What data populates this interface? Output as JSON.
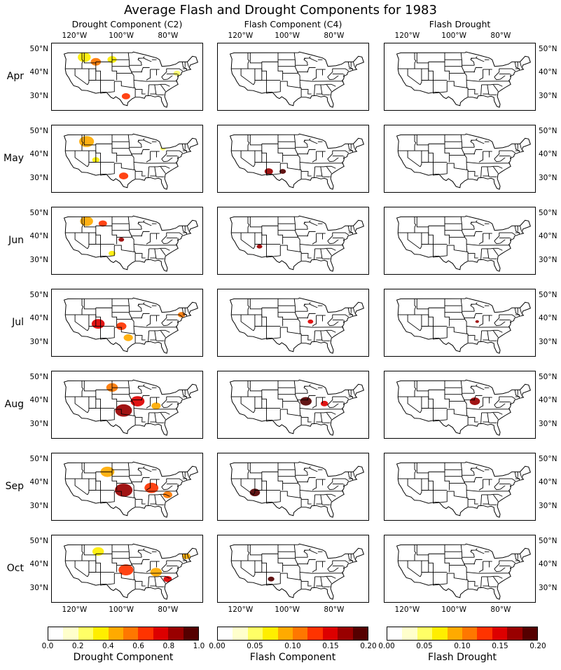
{
  "chart_data": {
    "type": "heatmap",
    "title": "Average Flash and Drought Components for 1983",
    "columns": [
      {
        "title": "Drought Component (C2)",
        "colorbar_label": "Drought Component",
        "colorbar_ticks": [
          "0.0",
          "0.2",
          "0.4",
          "0.6",
          "0.8",
          "1.0"
        ],
        "vmin": 0.0,
        "vmax": 1.0,
        "levels": [
          0.0,
          0.1,
          0.2,
          0.3,
          0.4,
          0.5,
          0.6,
          0.7,
          0.8,
          0.9,
          1.0
        ]
      },
      {
        "title": "Flash Component (C4)",
        "colorbar_label": "Flash Component",
        "colorbar_ticks": [
          "0.00",
          "0.05",
          "0.10",
          "0.15",
          "0.20"
        ],
        "vmin": 0.0,
        "vmax": 0.2,
        "levels": [
          0.0,
          0.02,
          0.04,
          0.06,
          0.08,
          0.1,
          0.12,
          0.14,
          0.16,
          0.18,
          0.2
        ]
      },
      {
        "title": "Flash Drought",
        "colorbar_label": "Flash Drought",
        "colorbar_ticks": [
          "0.00",
          "0.05",
          "0.10",
          "0.15",
          "0.20"
        ],
        "vmin": 0.0,
        "vmax": 0.2,
        "levels": [
          0.0,
          0.02,
          0.04,
          0.06,
          0.08,
          0.1,
          0.12,
          0.14,
          0.16,
          0.18,
          0.2
        ]
      }
    ],
    "rows": [
      "Apr",
      "May",
      "Jun",
      "Jul",
      "Aug",
      "Sep",
      "Oct"
    ],
    "lon_ticks": [
      "120°W",
      "100°W",
      "80°W"
    ],
    "lat_ticks": [
      "50°N",
      "40°N",
      "30°N"
    ],
    "colormap": [
      "#ffffff",
      "#ffffcc",
      "#ffff66",
      "#ffee00",
      "#ffaa00",
      "#ff7700",
      "#ff3300",
      "#dd0000",
      "#990000",
      "#550000",
      "#000000"
    ],
    "extent": {
      "lon": [
        -130,
        -65
      ],
      "lat": [
        24,
        53
      ]
    },
    "regions": [
      {
        "month": "Apr",
        "col": 0,
        "lon": -116,
        "lat": 47,
        "r": 2.8,
        "value": 0.3
      },
      {
        "month": "Apr",
        "col": 0,
        "lon": -111,
        "lat": 45,
        "r": 2.2,
        "value": 0.5
      },
      {
        "month": "Apr",
        "col": 0,
        "lon": -104,
        "lat": 46,
        "r": 2.0,
        "value": 0.3
      },
      {
        "month": "Apr",
        "col": 0,
        "lon": -98,
        "lat": 30,
        "r": 1.8,
        "value": 0.6
      },
      {
        "month": "Apr",
        "col": 0,
        "lon": -76,
        "lat": 40,
        "r": 1.5,
        "value": 0.2
      },
      {
        "month": "May",
        "col": 0,
        "lon": -115,
        "lat": 46,
        "r": 3.2,
        "value": 0.4
      },
      {
        "month": "May",
        "col": 0,
        "lon": -99,
        "lat": 31,
        "r": 2.0,
        "value": 0.6
      },
      {
        "month": "May",
        "col": 0,
        "lon": -111,
        "lat": 38,
        "r": 1.6,
        "value": 0.3
      },
      {
        "month": "May",
        "col": 0,
        "lon": -82,
        "lat": 43,
        "r": 1.2,
        "value": 0.2
      },
      {
        "month": "May",
        "col": 1,
        "lon": -108,
        "lat": 33,
        "r": 1.8,
        "value": 0.16
      },
      {
        "month": "May",
        "col": 1,
        "lon": -102,
        "lat": 33,
        "r": 1.4,
        "value": 0.18
      },
      {
        "month": "Jun",
        "col": 0,
        "lon": -115,
        "lat": 47,
        "r": 2.8,
        "value": 0.4
      },
      {
        "month": "Jun",
        "col": 0,
        "lon": -108,
        "lat": 46,
        "r": 1.8,
        "value": 0.6
      },
      {
        "month": "Jun",
        "col": 0,
        "lon": -104,
        "lat": 33,
        "r": 1.5,
        "value": 0.3
      },
      {
        "month": "Jun",
        "col": 0,
        "lon": -100,
        "lat": 39,
        "r": 1.2,
        "value": 0.8
      },
      {
        "month": "Jun",
        "col": 1,
        "lon": -112,
        "lat": 36,
        "r": 1.2,
        "value": 0.16
      },
      {
        "month": "Jul",
        "col": 0,
        "lon": -110,
        "lat": 38,
        "r": 2.8,
        "value": 0.7
      },
      {
        "month": "Jul",
        "col": 0,
        "lon": -100,
        "lat": 37,
        "r": 2.2,
        "value": 0.6
      },
      {
        "month": "Jul",
        "col": 0,
        "lon": -97,
        "lat": 32,
        "r": 2.0,
        "value": 0.4
      },
      {
        "month": "Jul",
        "col": 0,
        "lon": -74,
        "lat": 42,
        "r": 1.6,
        "value": 0.5
      },
      {
        "month": "Jul",
        "col": 1,
        "lon": -90,
        "lat": 39,
        "r": 1.2,
        "value": 0.14
      },
      {
        "month": "Jul",
        "col": 2,
        "lon": -90,
        "lat": 39,
        "r": 0.8,
        "value": 0.16
      },
      {
        "month": "Aug",
        "col": 0,
        "lon": -99,
        "lat": 36,
        "r": 3.6,
        "value": 0.8
      },
      {
        "month": "Aug",
        "col": 0,
        "lon": -93,
        "lat": 40,
        "r": 3.0,
        "value": 0.7
      },
      {
        "month": "Aug",
        "col": 0,
        "lon": -104,
        "lat": 46,
        "r": 2.5,
        "value": 0.5
      },
      {
        "month": "Aug",
        "col": 0,
        "lon": -85,
        "lat": 38,
        "r": 2.0,
        "value": 0.4
      },
      {
        "month": "Aug",
        "col": 1,
        "lon": -92,
        "lat": 40,
        "r": 2.5,
        "value": 0.17
      },
      {
        "month": "Aug",
        "col": 1,
        "lon": -84,
        "lat": 39,
        "r": 1.6,
        "value": 0.15
      },
      {
        "month": "Aug",
        "col": 2,
        "lon": -91,
        "lat": 40,
        "r": 2.2,
        "value": 0.16
      },
      {
        "month": "Sep",
        "col": 0,
        "lon": -99,
        "lat": 37,
        "r": 3.8,
        "value": 0.8
      },
      {
        "month": "Sep",
        "col": 0,
        "lon": -87,
        "lat": 38,
        "r": 3.0,
        "value": 0.6
      },
      {
        "month": "Sep",
        "col": 0,
        "lon": -106,
        "lat": 45,
        "r": 3.0,
        "value": 0.4
      },
      {
        "month": "Sep",
        "col": 0,
        "lon": -80,
        "lat": 35,
        "r": 2.0,
        "value": 0.5
      },
      {
        "month": "Sep",
        "col": 1,
        "lon": -114,
        "lat": 36,
        "r": 2.2,
        "value": 0.17
      },
      {
        "month": "Oct",
        "col": 0,
        "lon": -98,
        "lat": 38,
        "r": 3.2,
        "value": 0.6
      },
      {
        "month": "Oct",
        "col": 0,
        "lon": -85,
        "lat": 37,
        "r": 2.5,
        "value": 0.4
      },
      {
        "month": "Oct",
        "col": 0,
        "lon": -110,
        "lat": 46,
        "r": 2.5,
        "value": 0.3
      },
      {
        "month": "Oct",
        "col": 0,
        "lon": -80,
        "lat": 34,
        "r": 1.8,
        "value": 0.7
      },
      {
        "month": "Oct",
        "col": 0,
        "lon": -72,
        "lat": 44,
        "r": 1.8,
        "value": 0.4
      },
      {
        "month": "Oct",
        "col": 1,
        "lon": -107,
        "lat": 34,
        "r": 1.4,
        "value": 0.17
      }
    ]
  }
}
